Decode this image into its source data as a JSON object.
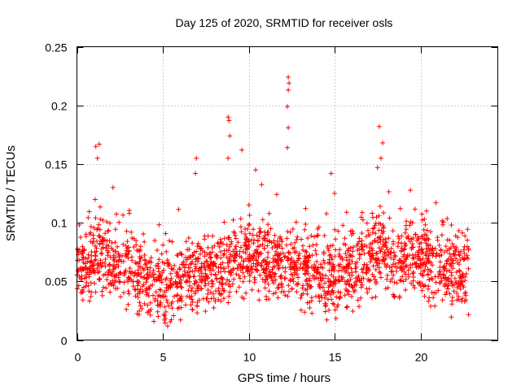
{
  "chart_data": {
    "type": "scatter",
    "title": "Day 125 of 2020, SRMTID for receiver osls",
    "xlabel": "GPS time / hours",
    "ylabel": "SRMTID / TECUs",
    "xlim": [
      0,
      24.5
    ],
    "ylim": [
      0,
      0.25
    ],
    "x_ticks": [
      0,
      5,
      10,
      15,
      20
    ],
    "x_tick_labels": [
      "0",
      "5",
      "10",
      "15",
      "20"
    ],
    "y_ticks": [
      0,
      0.05,
      0.1,
      0.15,
      0.2,
      0.25
    ],
    "y_tick_labels": [
      "0",
      "0.05",
      "0.1",
      "0.15",
      "0.2",
      "0.25"
    ],
    "grid": true,
    "marker": "+",
    "color": "#ff0000",
    "series": [
      {
        "name": "SRMTID",
        "x_range": [
          0,
          22.8
        ],
        "baseline_trend": [
          [
            0,
            0.06
          ],
          [
            1.2,
            0.075
          ],
          [
            2,
            0.065
          ],
          [
            3,
            0.06
          ],
          [
            4,
            0.05
          ],
          [
            5,
            0.045
          ],
          [
            6,
            0.05
          ],
          [
            7,
            0.055
          ],
          [
            8,
            0.06
          ],
          [
            9,
            0.065
          ],
          [
            10,
            0.07
          ],
          [
            11,
            0.068
          ],
          [
            12,
            0.065
          ],
          [
            13,
            0.06
          ],
          [
            14,
            0.055
          ],
          [
            15,
            0.05
          ],
          [
            16,
            0.06
          ],
          [
            17,
            0.07
          ],
          [
            17.8,
            0.08
          ],
          [
            18.5,
            0.065
          ],
          [
            19.5,
            0.07
          ],
          [
            20.5,
            0.065
          ],
          [
            21.5,
            0.06
          ],
          [
            22.8,
            0.055
          ]
        ],
        "spread": 0.02,
        "sample_points": [
          [
            1.1,
            0.165
          ],
          [
            1.3,
            0.167
          ],
          [
            1.2,
            0.155
          ],
          [
            2.1,
            0.13
          ],
          [
            6.95,
            0.155
          ],
          [
            6.9,
            0.142
          ],
          [
            8.8,
            0.19
          ],
          [
            8.85,
            0.187
          ],
          [
            8.9,
            0.174
          ],
          [
            8.8,
            0.155
          ],
          [
            9.6,
            0.162
          ],
          [
            10.4,
            0.145
          ],
          [
            12.3,
            0.224
          ],
          [
            12.35,
            0.219
          ],
          [
            12.3,
            0.213
          ],
          [
            12.25,
            0.199
          ],
          [
            12.3,
            0.181
          ],
          [
            12.25,
            0.164
          ],
          [
            14.8,
            0.142
          ],
          [
            15.0,
            0.125
          ],
          [
            17.6,
            0.182
          ],
          [
            17.8,
            0.168
          ],
          [
            17.7,
            0.155
          ],
          [
            17.5,
            0.147
          ],
          [
            20.9,
            0.117
          ]
        ]
      }
    ]
  }
}
